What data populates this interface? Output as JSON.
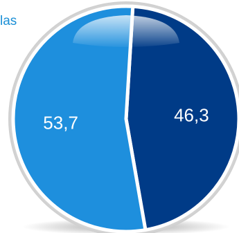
{
  "legend_fragment": "las",
  "chart_data": {
    "type": "pie",
    "slices": [
      {
        "value": 46.3,
        "label": "46,3",
        "color": "#003b87"
      },
      {
        "value": 53.7,
        "label": "53,7",
        "color": "#1e8fdd"
      }
    ]
  }
}
